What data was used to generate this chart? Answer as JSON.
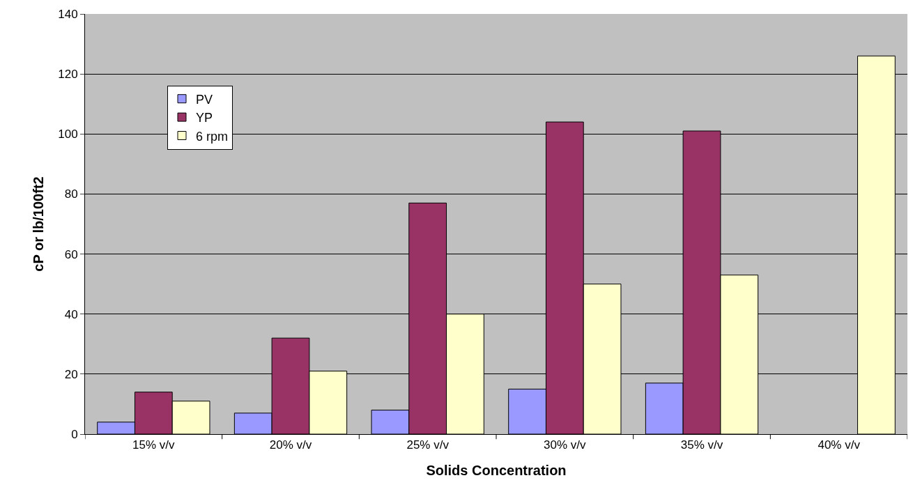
{
  "chart_data": {
    "type": "bar",
    "xlabel": "Solids Concentration",
    "ylabel": "cP or lb/100ft2",
    "categories": [
      "15% v/v",
      "20% v/v",
      "25% v/v",
      "30% v/v",
      "35% v/v",
      "40% v/v"
    ],
    "series": [
      {
        "name": "PV",
        "color": "#9999ff",
        "values": [
          4,
          7,
          8,
          15,
          17,
          null
        ]
      },
      {
        "name": "YP",
        "color": "#993366",
        "values": [
          14,
          32,
          77,
          104,
          101,
          null
        ]
      },
      {
        "name": "6 rpm",
        "color": "#ffffcc",
        "values": [
          11,
          21,
          40,
          50,
          53,
          126
        ]
      }
    ],
    "ylim": [
      0,
      140
    ],
    "yticks": [
      0,
      20,
      40,
      60,
      80,
      100,
      120,
      140
    ],
    "grid": "y",
    "legend": "top left"
  }
}
